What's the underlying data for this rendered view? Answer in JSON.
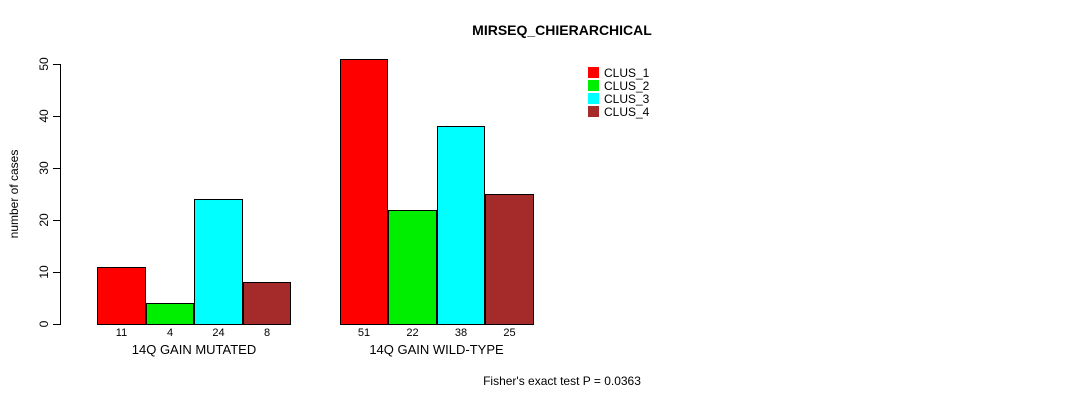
{
  "title": "MIRSEQ_CHIERARCHICAL",
  "footer": "Fisher's exact test P = 0.0363",
  "chart_data": {
    "type": "bar",
    "title": "MIRSEQ_CHIERARCHICAL",
    "xlabel": "",
    "ylabel": "number of cases",
    "ylim": [
      0,
      50
    ],
    "yticks": [
      0,
      10,
      20,
      30,
      40,
      50
    ],
    "grid": false,
    "legend_position": "top-right",
    "categories": [
      "14Q GAIN MUTATED",
      "14Q GAIN WILD-TYPE"
    ],
    "series": [
      {
        "name": "CLUS_1",
        "color": "#ff0000",
        "values": [
          11,
          51
        ]
      },
      {
        "name": "CLUS_2",
        "color": "#00ee00",
        "values": [
          4,
          22
        ]
      },
      {
        "name": "CLUS_3",
        "color": "#00ffff",
        "values": [
          24,
          38
        ]
      },
      {
        "name": "CLUS_4",
        "color": "#a52a2a",
        "values": [
          8,
          25
        ]
      }
    ],
    "bar_value_labels": [
      [
        11,
        4,
        24,
        8
      ],
      [
        51,
        22,
        38,
        25
      ]
    ],
    "annotation": "Fisher's exact test P = 0.0363"
  }
}
